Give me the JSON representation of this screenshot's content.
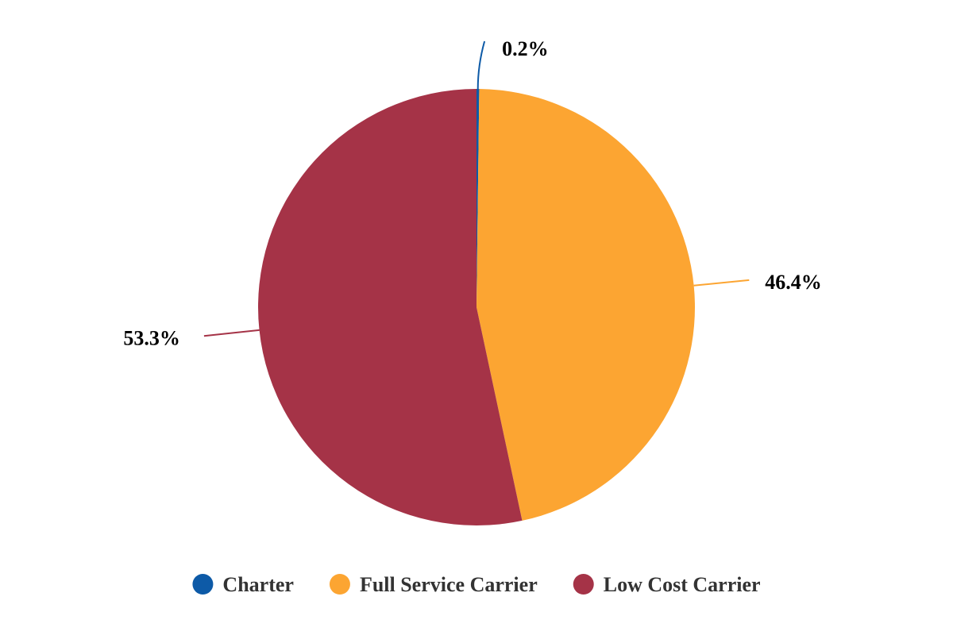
{
  "chart_data": {
    "type": "pie",
    "title": "",
    "legend_position": "bottom",
    "slices": [
      {
        "name": "Charter",
        "value": 0.2,
        "label": "0.2%",
        "color": "#0d5aa7"
      },
      {
        "name": "Full Service Carrier",
        "value": 46.4,
        "label": "46.4%",
        "color": "#fca532"
      },
      {
        "name": "Low Cost Carrier",
        "value": 53.3,
        "label": "53.3%",
        "color": "#a53347"
      }
    ]
  }
}
